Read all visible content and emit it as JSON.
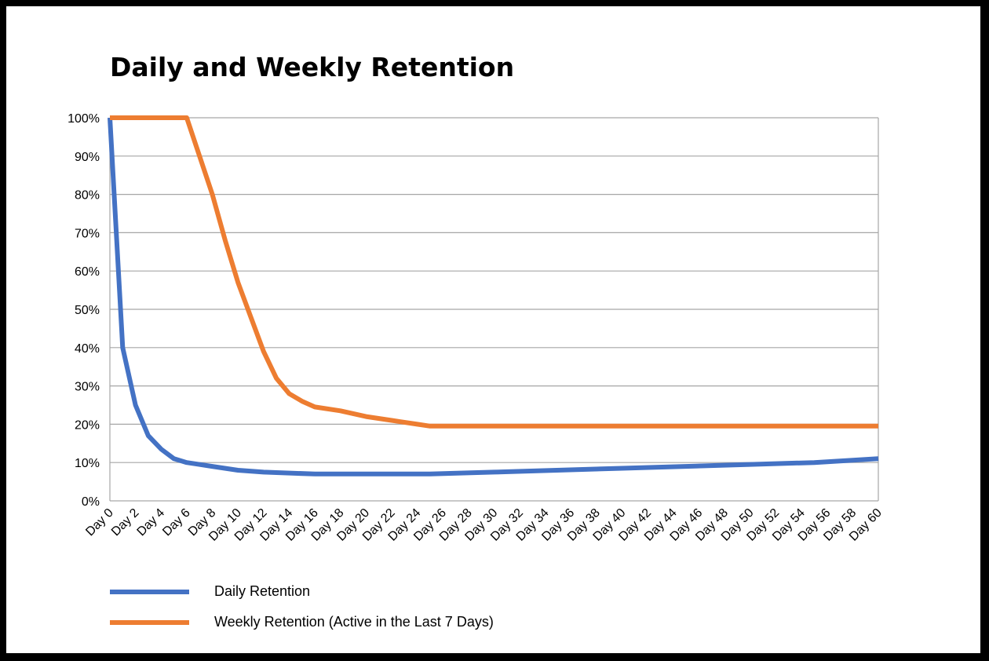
{
  "chart_data": {
    "type": "line",
    "title": "Daily and Weekly Retention",
    "xlabel": "",
    "ylabel": "",
    "x_start": 0,
    "x_end": 60,
    "x_tick_labels": [
      "Day 0",
      "Day 2",
      "Day 4",
      "Day 6",
      "Day 8",
      "Day 10",
      "Day 12",
      "Day 14",
      "Day 16",
      "Day 18",
      "Day 20",
      "Day 22",
      "Day 24",
      "Day 26",
      "Day 28",
      "Day 30",
      "Day 32",
      "Day 34",
      "Day 36",
      "Day 38",
      "Day 40",
      "Day 42",
      "Day 44",
      "Day 46",
      "Day 48",
      "Day 50",
      "Day 52",
      "Day 54",
      "Day 56",
      "Day 58",
      "Day 60"
    ],
    "y_tick_labels": [
      "0%",
      "10%",
      "20%",
      "30%",
      "40%",
      "50%",
      "60%",
      "70%",
      "80%",
      "90%",
      "100%"
    ],
    "ylim": [
      0,
      100
    ],
    "grid": true,
    "legend_position": "bottom-left",
    "series": [
      {
        "name": "Daily Retention",
        "color": "#4472C4",
        "points": [
          [
            0,
            100
          ],
          [
            1,
            40
          ],
          [
            2,
            25
          ],
          [
            3,
            17
          ],
          [
            4,
            13.5
          ],
          [
            5,
            11
          ],
          [
            6,
            10
          ],
          [
            8,
            9
          ],
          [
            10,
            8
          ],
          [
            12,
            7.5
          ],
          [
            16,
            7
          ],
          [
            20,
            7
          ],
          [
            25,
            7
          ],
          [
            30,
            7.5
          ],
          [
            40,
            8.5
          ],
          [
            50,
            9.5
          ],
          [
            55,
            10
          ],
          [
            60,
            11
          ]
        ]
      },
      {
        "name": "Weekly Retention (Active in the Last 7 Days)",
        "color": "#ED7D31",
        "points": [
          [
            0,
            100
          ],
          [
            6,
            100
          ],
          [
            7,
            90
          ],
          [
            8,
            80
          ],
          [
            9,
            68
          ],
          [
            10,
            57
          ],
          [
            11,
            48
          ],
          [
            12,
            39
          ],
          [
            13,
            32
          ],
          [
            14,
            28
          ],
          [
            15,
            26
          ],
          [
            16,
            24.5
          ],
          [
            18,
            23.5
          ],
          [
            20,
            22
          ],
          [
            22,
            21
          ],
          [
            24,
            20
          ],
          [
            25,
            19.5
          ],
          [
            60,
            19.5
          ]
        ]
      }
    ]
  }
}
